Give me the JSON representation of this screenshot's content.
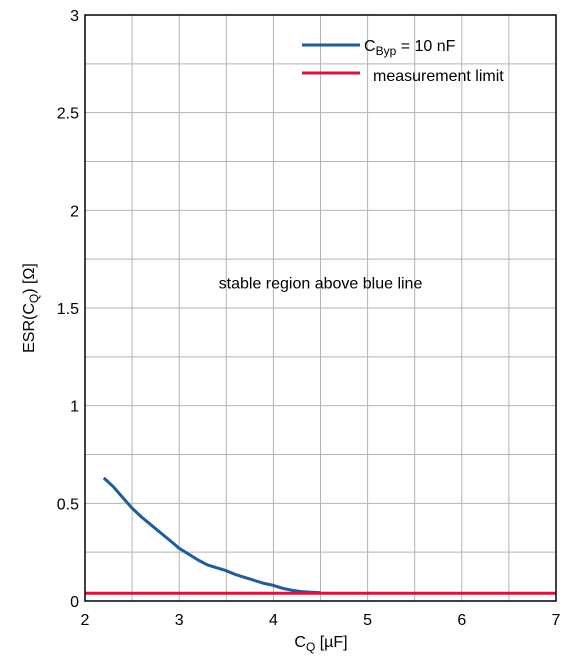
{
  "chart_data": {
    "type": "line",
    "xlabel": {
      "base": "C",
      "sub": "Q",
      "rest": " [µF]"
    },
    "ylabel": {
      "base": "ESR(C",
      "sub": "Q",
      "rest": ") [Ω]"
    },
    "xlim": [
      2,
      7
    ],
    "ylim": [
      0,
      3
    ],
    "xticks": [
      2,
      3,
      4,
      5,
      6,
      7
    ],
    "xtick_labels": [
      "2",
      "3",
      "4",
      "5",
      "6",
      "7"
    ],
    "yticks": [
      0,
      0.5,
      1,
      1.5,
      2,
      2.5,
      3
    ],
    "ytick_labels": [
      "0",
      "0.5",
      "1",
      "1.5",
      "2",
      "2.5",
      "3"
    ],
    "grid_x_step": 0.5,
    "grid_y_step": 0.25,
    "grid": true,
    "legend_position": "top-right",
    "series": [
      {
        "name": {
          "base": "C",
          "sub": "Byp",
          "rest": " = 10 nF"
        },
        "color": "#1f5c99",
        "x": [
          2.2,
          2.3,
          2.4,
          2.5,
          2.6,
          2.7,
          2.8,
          2.9,
          3.0,
          3.1,
          3.2,
          3.3,
          3.4,
          3.5,
          3.6,
          3.7,
          3.8,
          3.9,
          4.0,
          4.1,
          4.2,
          4.3,
          4.4,
          4.5
        ],
        "y": [
          0.63,
          0.585,
          0.53,
          0.475,
          0.43,
          0.39,
          0.35,
          0.31,
          0.27,
          0.24,
          0.21,
          0.185,
          0.17,
          0.155,
          0.135,
          0.12,
          0.105,
          0.09,
          0.08,
          0.065,
          0.055,
          0.048,
          0.045,
          0.043
        ]
      },
      {
        "name": {
          "base": "measurement limit",
          "sub": "",
          "rest": ""
        },
        "color": "#d6143c",
        "x": [
          2,
          7
        ],
        "y": [
          0.04,
          0.04
        ]
      }
    ],
    "annotations": [
      {
        "text": "stable region above blue line",
        "x": 4.5,
        "y": 1.6
      }
    ]
  }
}
